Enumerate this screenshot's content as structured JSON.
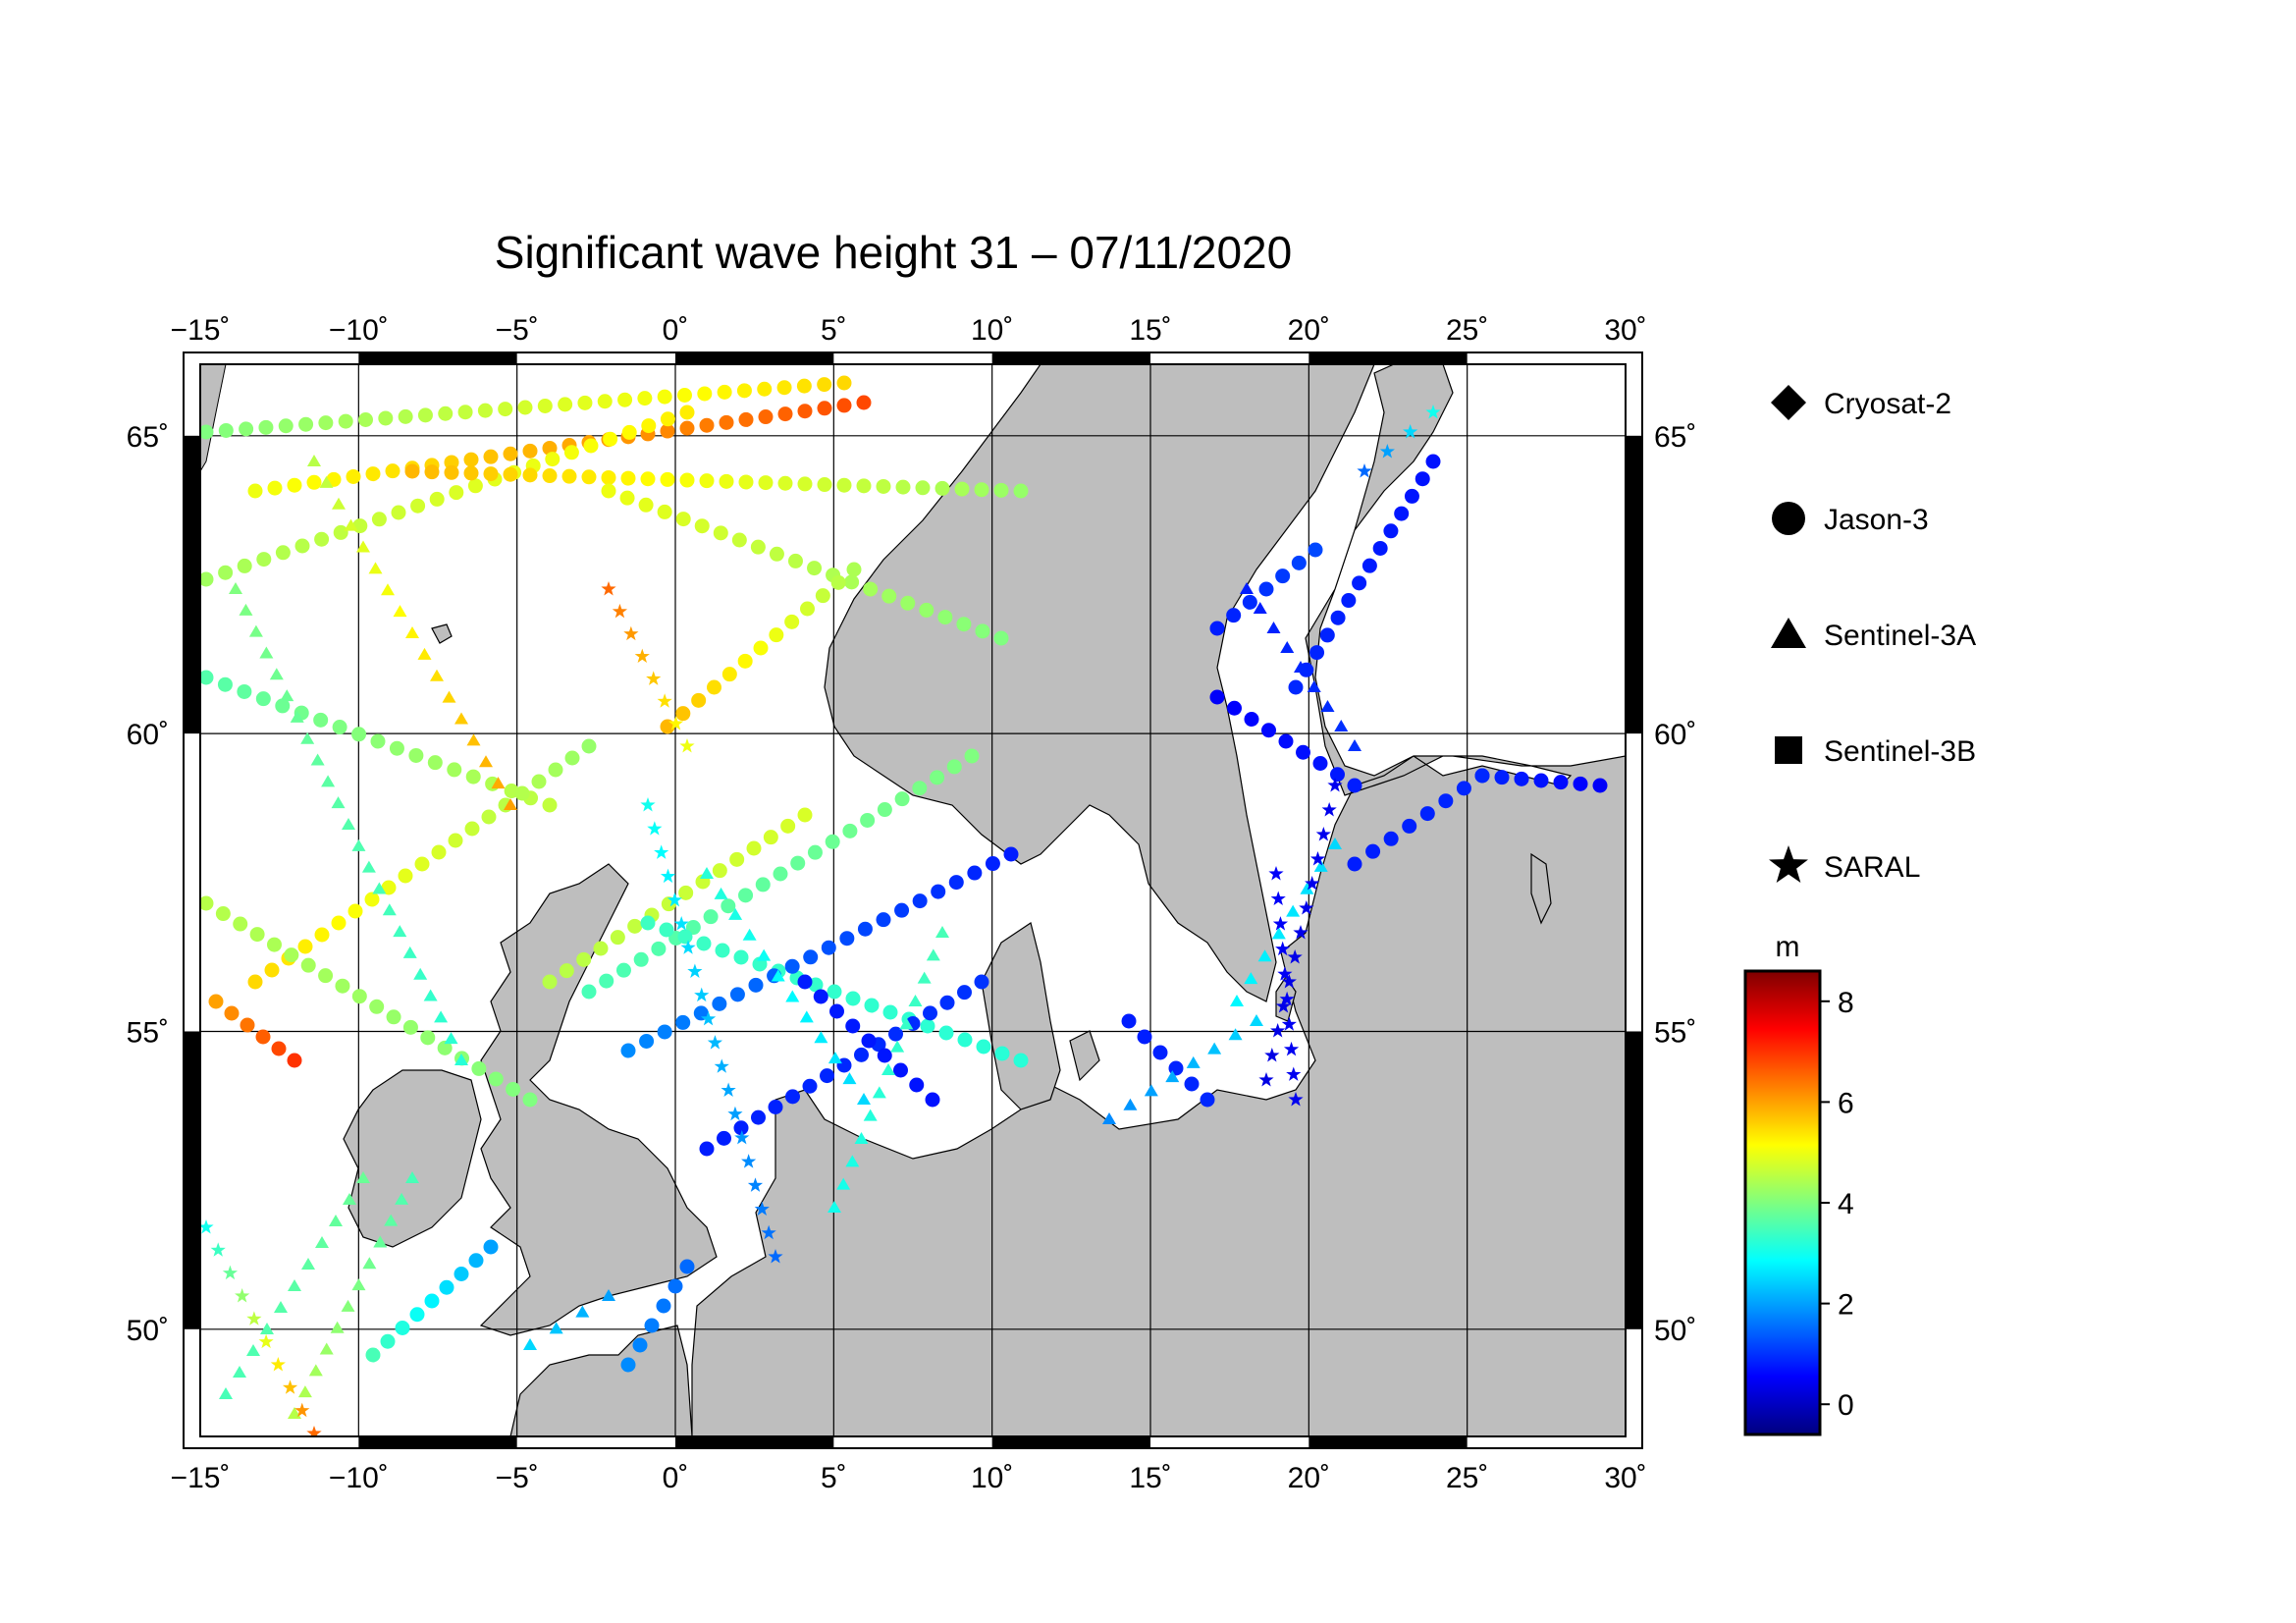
{
  "title": "Significant wave height 31 – 07/11/2020",
  "map": {
    "lon_range": [
      -15,
      30
    ],
    "lat_range": [
      48.2,
      66.2
    ],
    "lon_ticks": [
      "−15˚",
      "−10˚",
      "−5˚",
      "0˚",
      "5˚",
      "10˚",
      "15˚",
      "20˚",
      "25˚",
      "30˚"
    ],
    "lat_ticks": [
      "50˚",
      "55˚",
      "60˚",
      "65˚"
    ],
    "land_color": "#bebebe",
    "sea_color": "#ffffff"
  },
  "legend": {
    "items": [
      {
        "label": "Cryosat-2",
        "icon": "diamond-icon"
      },
      {
        "label": "Jason-3",
        "icon": "circle-icon"
      },
      {
        "label": "Sentinel-3A",
        "icon": "triangle-icon"
      },
      {
        "label": "Sentinel-3B",
        "icon": "square-icon"
      },
      {
        "label": "SARAL",
        "icon": "star-icon"
      }
    ]
  },
  "colorbar": {
    "unit": "m",
    "min": -0.6,
    "max": 8.6,
    "tick_labels": [
      "8",
      "6",
      "4",
      "2",
      "0"
    ],
    "colormap": "jet"
  }
}
